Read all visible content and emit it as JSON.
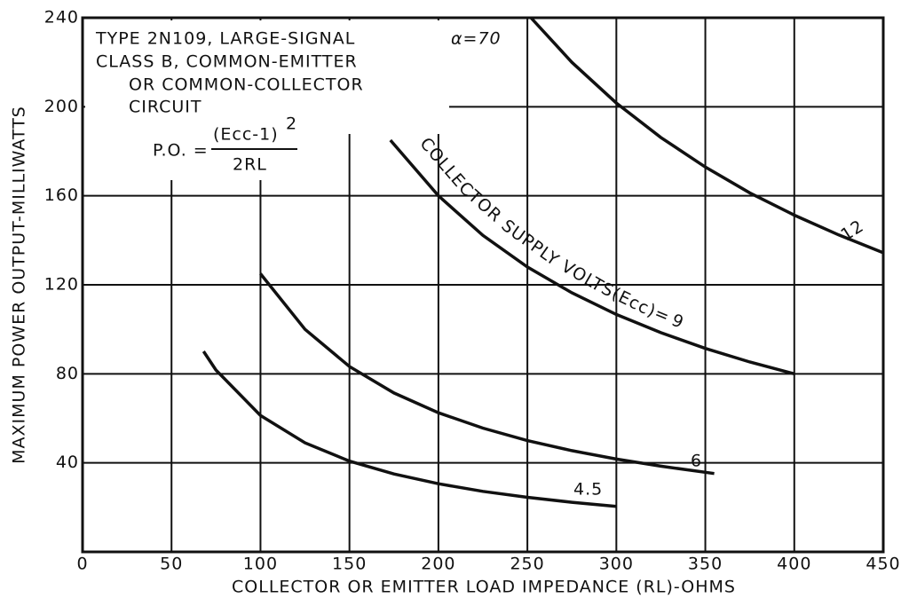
{
  "chart_data": {
    "type": "line",
    "ylabel": "MAXIMUM POWER OUTPUT-MILLIWATTS",
    "xlabel": "COLLECTOR OR EMITTER LOAD IMPEDANCE (RL)-OHMS",
    "xlim": [
      0,
      450
    ],
    "xticks": [
      0,
      50,
      100,
      150,
      200,
      250,
      300,
      350,
      400,
      450
    ],
    "ylim": [
      0,
      240
    ],
    "yticks": [
      40,
      80,
      120,
      160,
      200,
      240
    ],
    "grid": true,
    "annotations": [
      "TYPE 2N109, LARGE-SIGNAL",
      "α=70",
      "CLASS B, COMMON-EMITTER",
      "OR COMMON-COLLECTOR",
      "CIRCUIT",
      "P.O. =",
      "(Ecc-1)",
      "2",
      "2RL",
      "COLLECTOR SUPPLY VOLTS(Ecc)="
    ],
    "series": [
      {
        "name": "4.5",
        "color": "#111111",
        "x": [
          68,
          75,
          100,
          125,
          150,
          175,
          200,
          225,
          250,
          275,
          300
        ],
        "values": [
          90.1,
          81.7,
          61.3,
          49,
          40.8,
          35,
          30.6,
          27.2,
          24.5,
          22.3,
          20.4
        ]
      },
      {
        "name": "6",
        "color": "#111111",
        "x": [
          100,
          125,
          150,
          175,
          200,
          225,
          250,
          275,
          300,
          325,
          355
        ],
        "values": [
          125,
          100,
          83.3,
          71.4,
          62.5,
          55.6,
          50,
          45.5,
          41.7,
          38.5,
          35.2
        ]
      },
      {
        "name": "9",
        "color": "#111111",
        "x": [
          173,
          200,
          225,
          250,
          275,
          300,
          325,
          350,
          375,
          400
        ],
        "values": [
          185,
          160,
          142.2,
          128,
          116.4,
          106.7,
          98.5,
          91.4,
          85.3,
          80
        ]
      },
      {
        "name": "12",
        "color": "#111111",
        "x": [
          252,
          275,
          300,
          325,
          350,
          375,
          400,
          425,
          450
        ],
        "values": [
          240,
          220,
          201.7,
          186.2,
          172.9,
          161.3,
          151.3,
          142.4,
          134.4
        ]
      }
    ]
  }
}
